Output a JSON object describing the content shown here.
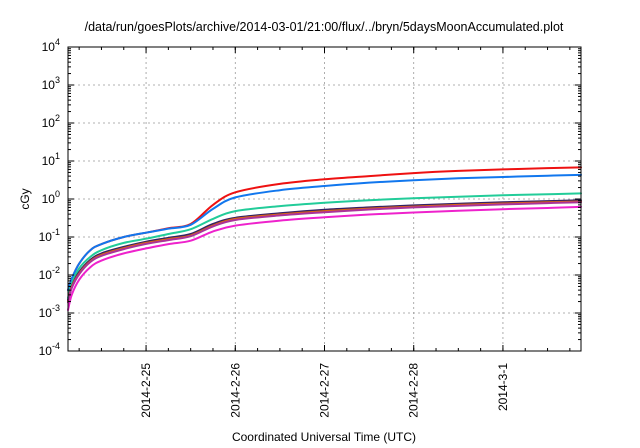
{
  "chart_data": {
    "type": "line",
    "title": "/data/run/goesPlots/archive/2014-03-01/21:00/flux/../bryn/5daysMoonAccumulated.plot",
    "xlabel": "Coordinated Universal Time (UTC)",
    "ylabel": "cGy",
    "y_scale": "log",
    "ylim": [
      0.0001,
      10000
    ],
    "xlim": [
      "2014-02-24 03:00",
      "2014-03-01 21:00"
    ],
    "y_ticks": [
      {
        "base": "10",
        "exp": "-4"
      },
      {
        "base": "10",
        "exp": "-3"
      },
      {
        "base": "10",
        "exp": "-2"
      },
      {
        "base": "10",
        "exp": "-1"
      },
      {
        "base": "10",
        "exp": "0"
      },
      {
        "base": "10",
        "exp": "1"
      },
      {
        "base": "10",
        "exp": "2"
      },
      {
        "base": "10",
        "exp": "3"
      },
      {
        "base": "10",
        "exp": "4"
      }
    ],
    "x_ticks": [
      "2014-2-25",
      "2014-2-26",
      "2014-2-27",
      "2014-2-28",
      "2014-3-1"
    ],
    "grid": true,
    "legend": "none",
    "series": [
      {
        "color": "#ee1111",
        "x": [
          "2014-02-24 03:00",
          "2014-02-24 04:00",
          "2014-02-24 06:00",
          "2014-02-24 09:00",
          "2014-02-24 12:00",
          "2014-02-24 18:00",
          "2014-02-25 00:00",
          "2014-02-25 06:00",
          "2014-02-25 12:00",
          "2014-02-25 18:00",
          "2014-02-26 00:00",
          "2014-02-26 12:00",
          "2014-02-27 00:00",
          "2014-02-27 12:00",
          "2014-02-28 00:00",
          "2014-02-28 12:00",
          "2014-03-01 00:00",
          "2014-03-01 12:00",
          "2014-03-01 21:00"
        ],
        "y": [
          0.004,
          0.008,
          0.02,
          0.045,
          0.065,
          0.1,
          0.13,
          0.17,
          0.22,
          0.7,
          1.5,
          2.5,
          3.3,
          4.0,
          4.8,
          5.5,
          6.0,
          6.5,
          6.8
        ]
      },
      {
        "color": "#1177ee",
        "x": [
          "2014-02-24 03:00",
          "2014-02-24 04:00",
          "2014-02-24 06:00",
          "2014-02-24 09:00",
          "2014-02-24 12:00",
          "2014-02-24 18:00",
          "2014-02-25 00:00",
          "2014-02-25 06:00",
          "2014-02-25 12:00",
          "2014-02-25 18:00",
          "2014-02-26 00:00",
          "2014-02-26 12:00",
          "2014-02-27 00:00",
          "2014-02-27 12:00",
          "2014-02-28 00:00",
          "2014-02-28 12:00",
          "2014-03-01 00:00",
          "2014-03-01 12:00",
          "2014-03-01 21:00"
        ],
        "y": [
          0.004,
          0.008,
          0.02,
          0.045,
          0.065,
          0.1,
          0.13,
          0.165,
          0.21,
          0.55,
          1.1,
          1.7,
          2.2,
          2.7,
          3.1,
          3.5,
          3.8,
          4.1,
          4.3
        ]
      },
      {
        "color": "#22cc99",
        "x": [
          "2014-02-24 03:00",
          "2014-02-24 04:00",
          "2014-02-24 06:00",
          "2014-02-24 09:00",
          "2014-02-24 12:00",
          "2014-02-24 18:00",
          "2014-02-25 00:00",
          "2014-02-25 06:00",
          "2014-02-25 12:00",
          "2014-02-25 18:00",
          "2014-02-26 00:00",
          "2014-02-26 12:00",
          "2014-02-27 00:00",
          "2014-02-27 12:00",
          "2014-02-28 00:00",
          "2014-02-28 12:00",
          "2014-03-01 00:00",
          "2014-03-01 12:00",
          "2014-03-01 21:00"
        ],
        "y": [
          0.0025,
          0.006,
          0.015,
          0.03,
          0.045,
          0.07,
          0.09,
          0.12,
          0.16,
          0.3,
          0.48,
          0.65,
          0.8,
          0.93,
          1.05,
          1.15,
          1.25,
          1.33,
          1.4
        ]
      },
      {
        "color": "#332266",
        "x": [
          "2014-02-24 03:00",
          "2014-02-24 04:00",
          "2014-02-24 06:00",
          "2014-02-24 09:00",
          "2014-02-24 12:00",
          "2014-02-24 18:00",
          "2014-02-25 00:00",
          "2014-02-25 06:00",
          "2014-02-25 12:00",
          "2014-02-25 18:00",
          "2014-02-26 00:00",
          "2014-02-26 12:00",
          "2014-02-27 00:00",
          "2014-02-27 12:00",
          "2014-02-28 00:00",
          "2014-02-28 12:00",
          "2014-03-01 00:00",
          "2014-03-01 12:00",
          "2014-03-01 21:00"
        ],
        "y": [
          0.0022,
          0.005,
          0.012,
          0.025,
          0.037,
          0.055,
          0.075,
          0.095,
          0.12,
          0.22,
          0.32,
          0.42,
          0.52,
          0.6,
          0.68,
          0.75,
          0.82,
          0.88,
          0.93
        ]
      },
      {
        "color": "#dd6611",
        "x": [
          "2014-02-24 03:00",
          "2014-02-24 04:00",
          "2014-02-24 06:00",
          "2014-02-24 09:00",
          "2014-02-24 12:00",
          "2014-02-24 18:00",
          "2014-02-25 00:00",
          "2014-02-25 06:00",
          "2014-02-25 12:00",
          "2014-02-25 18:00",
          "2014-02-26 00:00",
          "2014-02-26 12:00",
          "2014-02-27 00:00",
          "2014-02-27 12:00",
          "2014-02-28 00:00",
          "2014-02-28 12:00",
          "2014-03-01 00:00",
          "2014-03-01 12:00",
          "2014-03-01 21:00"
        ],
        "y": [
          0.002,
          0.0048,
          0.011,
          0.023,
          0.034,
          0.051,
          0.07,
          0.088,
          0.11,
          0.2,
          0.3,
          0.39,
          0.48,
          0.56,
          0.63,
          0.7,
          0.76,
          0.82,
          0.86
        ]
      },
      {
        "color": "#aa3399",
        "x": [
          "2014-02-24 03:00",
          "2014-02-24 04:00",
          "2014-02-24 06:00",
          "2014-02-24 09:00",
          "2014-02-24 12:00",
          "2014-02-24 18:00",
          "2014-02-25 00:00",
          "2014-02-25 06:00",
          "2014-02-25 12:00",
          "2014-02-25 18:00",
          "2014-02-26 00:00",
          "2014-02-26 12:00",
          "2014-02-27 00:00",
          "2014-02-27 12:00",
          "2014-02-28 00:00",
          "2014-02-28 12:00",
          "2014-03-01 00:00",
          "2014-03-01 12:00",
          "2014-03-01 21:00"
        ],
        "y": [
          0.0019,
          0.0045,
          0.0105,
          0.022,
          0.032,
          0.048,
          0.066,
          0.083,
          0.105,
          0.19,
          0.28,
          0.37,
          0.45,
          0.53,
          0.6,
          0.66,
          0.72,
          0.78,
          0.82
        ]
      },
      {
        "color": "#ee22cc",
        "x": [
          "2014-02-24 03:00",
          "2014-02-24 04:00",
          "2014-02-24 06:00",
          "2014-02-24 09:00",
          "2014-02-24 12:00",
          "2014-02-24 18:00",
          "2014-02-25 00:00",
          "2014-02-25 06:00",
          "2014-02-25 12:00",
          "2014-02-25 18:00",
          "2014-02-26 00:00",
          "2014-02-26 12:00",
          "2014-02-27 00:00",
          "2014-02-27 12:00",
          "2014-02-28 00:00",
          "2014-02-28 12:00",
          "2014-03-01 00:00",
          "2014-03-01 12:00",
          "2014-03-01 21:00"
        ],
        "y": [
          0.0012,
          0.003,
          0.0075,
          0.016,
          0.024,
          0.037,
          0.05,
          0.065,
          0.08,
          0.14,
          0.2,
          0.27,
          0.33,
          0.39,
          0.44,
          0.49,
          0.54,
          0.58,
          0.62
        ]
      }
    ]
  }
}
